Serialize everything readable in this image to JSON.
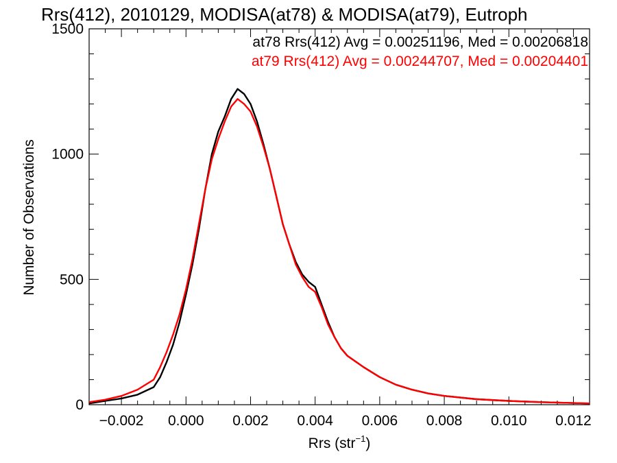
{
  "chart_data": {
    "type": "line",
    "title": "Rrs(412), 2010129, MODISA(at78) & MODISA(at79), Eutroph",
    "xlabel_main": "Rrs (str",
    "xlabel_sup": "−1",
    "xlabel_close": ")",
    "ylabel": "Number of Observations",
    "xlim": [
      -0.003,
      0.0125
    ],
    "ylim": [
      0,
      1500
    ],
    "xticks": [
      -0.002,
      0.0,
      0.002,
      0.004,
      0.006,
      0.008,
      0.01,
      0.012
    ],
    "xtick_labels": [
      "−0.002",
      "0.000",
      "0.002",
      "0.004",
      "0.006",
      "0.008",
      "0.010",
      "0.012"
    ],
    "yticks": [
      0,
      500,
      1000,
      1500
    ],
    "ytick_labels": [
      "0",
      "500",
      "1000",
      "1500"
    ],
    "grid": false,
    "annotations": [
      {
        "text": "at78 Rrs(412) Avg = 0.00251196, Med = 0.00206818",
        "color": "#000000"
      },
      {
        "text": "at79 Rrs(412) Avg = 0.00244707, Med = 0.00204401",
        "color": "#ff0000"
      }
    ],
    "series": [
      {
        "color": "#000000",
        "x": [
          -0.003,
          -0.0025,
          -0.002,
          -0.0015,
          -0.001,
          -0.0008,
          -0.0006,
          -0.0004,
          -0.0002,
          0.0,
          0.0002,
          0.0004,
          0.0006,
          0.0008,
          0.001,
          0.0012,
          0.0014,
          0.0016,
          0.0018,
          0.002,
          0.0022,
          0.0024,
          0.0026,
          0.0028,
          0.003,
          0.0032,
          0.0034,
          0.0036,
          0.0038,
          0.004,
          0.0042,
          0.0044,
          0.0046,
          0.0048,
          0.005,
          0.0055,
          0.006,
          0.0065,
          0.007,
          0.0075,
          0.008,
          0.009,
          0.01,
          0.011,
          0.0125
        ],
        "y": [
          5,
          15,
          25,
          40,
          70,
          110,
          170,
          240,
          330,
          440,
          560,
          700,
          860,
          1000,
          1090,
          1150,
          1220,
          1260,
          1240,
          1200,
          1130,
          1040,
          940,
          830,
          720,
          640,
          570,
          520,
          490,
          470,
          400,
          330,
          270,
          225,
          195,
          150,
          110,
          80,
          60,
          45,
          35,
          22,
          15,
          10,
          5
        ]
      },
      {
        "color": "#ff0000",
        "x": [
          -0.003,
          -0.0025,
          -0.002,
          -0.0015,
          -0.001,
          -0.0008,
          -0.0006,
          -0.0004,
          -0.0002,
          0.0,
          0.0002,
          0.0004,
          0.0006,
          0.0008,
          0.001,
          0.0012,
          0.0014,
          0.0016,
          0.0018,
          0.002,
          0.0022,
          0.0024,
          0.0026,
          0.0028,
          0.003,
          0.0032,
          0.0034,
          0.0036,
          0.0038,
          0.004,
          0.0042,
          0.0044,
          0.0046,
          0.0048,
          0.005,
          0.0055,
          0.006,
          0.0065,
          0.007,
          0.0075,
          0.008,
          0.009,
          0.01,
          0.011,
          0.0125
        ],
        "y": [
          10,
          20,
          35,
          60,
          100,
          150,
          210,
          280,
          360,
          460,
          580,
          720,
          860,
          980,
          1060,
          1130,
          1190,
          1220,
          1200,
          1170,
          1110,
          1030,
          940,
          830,
          720,
          640,
          560,
          510,
          470,
          450,
          390,
          320,
          270,
          225,
          195,
          150,
          110,
          80,
          60,
          45,
          35,
          22,
          15,
          10,
          5
        ]
      }
    ]
  }
}
